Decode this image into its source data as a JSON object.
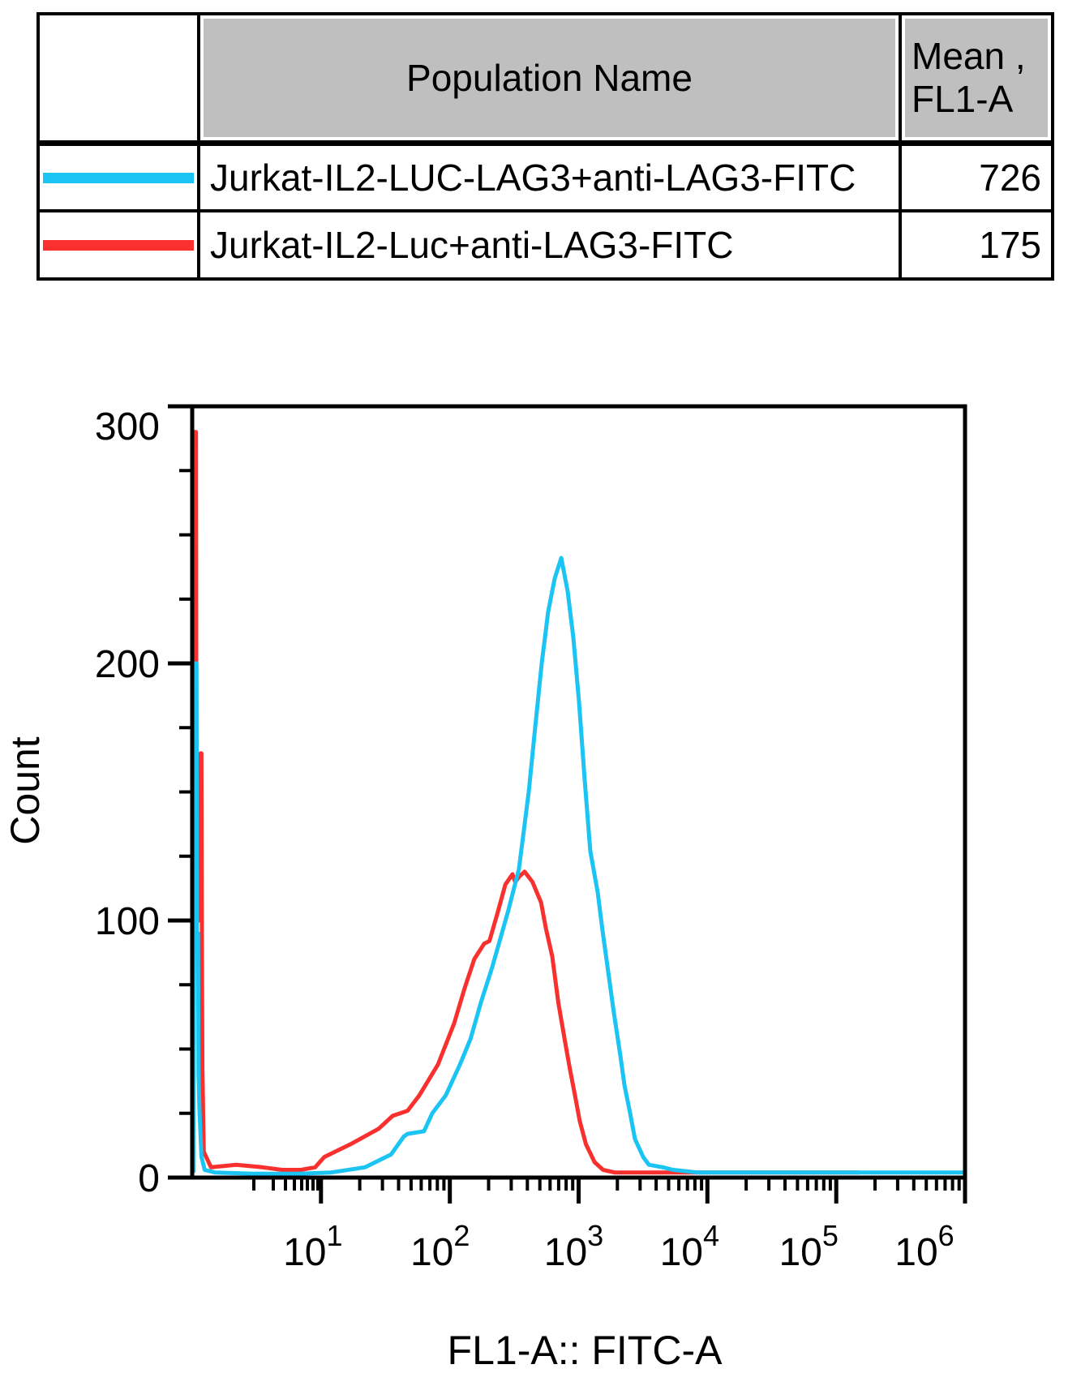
{
  "table": {
    "headers": {
      "population": "Population Name",
      "mean_line1": "Mean ,",
      "mean_line2": "FL1-A"
    },
    "rows": [
      {
        "name": "Jurkat-IL2-LUC-LAG3+anti-LAG3-FITC",
        "mean": "726",
        "color": "#1bc4f2"
      },
      {
        "name": "Jurkat-IL2-Luc+anti-LAG3-FITC",
        "mean": "175",
        "color": "#f8312f"
      }
    ]
  },
  "chart_data": {
    "type": "line",
    "subtype": "flow-cytometry-histogram-overlay",
    "title": "",
    "xlabel": "FL1-A:: FITC-A",
    "ylabel": "Count",
    "x_scale": "log",
    "xlim": [
      1,
      1000000
    ],
    "ylim": [
      0,
      300
    ],
    "y_ticks": [
      0,
      100,
      200,
      300
    ],
    "y_minor_interval": 25,
    "x_tick_exponents": [
      1,
      2,
      3,
      4,
      5,
      6
    ],
    "grid": false,
    "legend_position": "table-top",
    "series": [
      {
        "name": "Jurkat-IL2-Luc+anti-LAG3-FITC",
        "color": "#f8312f",
        "mean_fl1a": 175,
        "points": [
          [
            1.02,
            2
          ],
          [
            1.04,
            290
          ],
          [
            1.07,
            290
          ],
          [
            1.08,
            100
          ],
          [
            1.15,
            100
          ],
          [
            1.16,
            165
          ],
          [
            1.18,
            165
          ],
          [
            1.19,
            91
          ],
          [
            1.2,
            42
          ],
          [
            1.23,
            10
          ],
          [
            1.4,
            4
          ],
          [
            2.2,
            5
          ],
          [
            3.5,
            4
          ],
          [
            5,
            3
          ],
          [
            7,
            3
          ],
          [
            9,
            4
          ],
          [
            10.6,
            8
          ],
          [
            17,
            13
          ],
          [
            28,
            19
          ],
          [
            36,
            24
          ],
          [
            47,
            26
          ],
          [
            58,
            32
          ],
          [
            81,
            44
          ],
          [
            108,
            60
          ],
          [
            131,
            74
          ],
          [
            155,
            85
          ],
          [
            185,
            91
          ],
          [
            203,
            92
          ],
          [
            235,
            103
          ],
          [
            270,
            114
          ],
          [
            307,
            118
          ],
          [
            322,
            115
          ],
          [
            345,
            117
          ],
          [
            381,
            119
          ],
          [
            438,
            115
          ],
          [
            511,
            107
          ],
          [
            557,
            97
          ],
          [
            624,
            86
          ],
          [
            696,
            68
          ],
          [
            771,
            55
          ],
          [
            850,
            43
          ],
          [
            937,
            32
          ],
          [
            1020,
            22
          ],
          [
            1140,
            13
          ],
          [
            1330,
            6
          ],
          [
            1550,
            3
          ],
          [
            1900,
            2
          ],
          [
            20000,
            2
          ],
          [
            150000,
            2
          ]
        ]
      },
      {
        "name": "Jurkat-IL2-LUC-LAG3+anti-LAG3-FITC",
        "color": "#1bc4f2",
        "mean_fl1a": 726,
        "points": [
          [
            1.02,
            2
          ],
          [
            1.05,
            200
          ],
          [
            1.08,
            200
          ],
          [
            1.09,
            95
          ],
          [
            1.11,
            95
          ],
          [
            1.12,
            40
          ],
          [
            1.14,
            26
          ],
          [
            1.18,
            8
          ],
          [
            1.25,
            3
          ],
          [
            1.5,
            2
          ],
          [
            3,
            1.5
          ],
          [
            7,
            1.5
          ],
          [
            12,
            2
          ],
          [
            22,
            4
          ],
          [
            35,
            9
          ],
          [
            44,
            16
          ],
          [
            47,
            17
          ],
          [
            63,
            18
          ],
          [
            73,
            25
          ],
          [
            93,
            32
          ],
          [
            120,
            44
          ],
          [
            145,
            54
          ],
          [
            174,
            68
          ],
          [
            214,
            82
          ],
          [
            247,
            93
          ],
          [
            285,
            104
          ],
          [
            344,
            120
          ],
          [
            410,
            150
          ],
          [
            460,
            175
          ],
          [
            517,
            200
          ],
          [
            580,
            220
          ],
          [
            652,
            233
          ],
          [
            733,
            241
          ],
          [
            822,
            228
          ],
          [
            910,
            210
          ],
          [
            1007,
            185
          ],
          [
            1114,
            155
          ],
          [
            1233,
            127
          ],
          [
            1405,
            111
          ],
          [
            1534,
            96
          ],
          [
            1698,
            80
          ],
          [
            1879,
            64
          ],
          [
            2100,
            48
          ],
          [
            2268,
            36
          ],
          [
            2512,
            25
          ],
          [
            2740,
            15
          ],
          [
            3170,
            8
          ],
          [
            3507,
            5
          ],
          [
            4500,
            4
          ],
          [
            5420,
            3
          ],
          [
            8360,
            2
          ],
          [
            1000000,
            2
          ]
        ]
      }
    ]
  }
}
